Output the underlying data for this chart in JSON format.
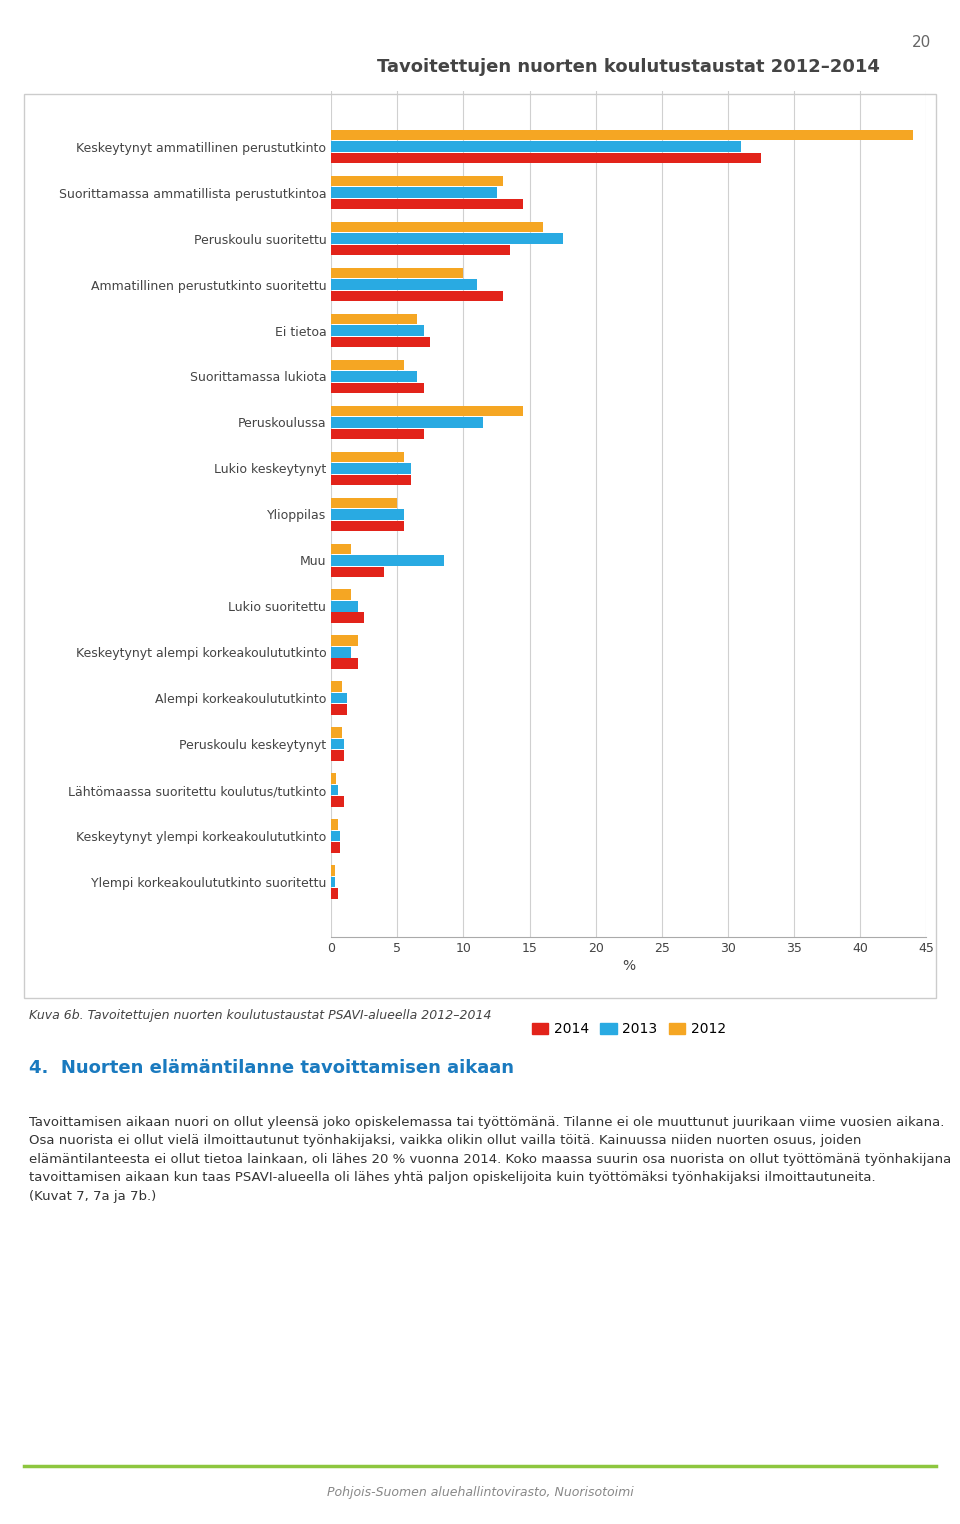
{
  "title": "Tavoitettujen nuorten koulutustaustat 2012–2014",
  "categories": [
    "Keskeytynyt ammatillinen perustutkinto",
    "Suorittamassa ammatillista perustutkintoa",
    "Peruskoulu suoritettu",
    "Ammatillinen perustutkinto suoritettu",
    "Ei tietoa",
    "Suorittamassa lukiota",
    "Peruskoulussa",
    "Lukio keskeytynyt",
    "Ylioppilas",
    "Muu",
    "Lukio suoritettu",
    "Keskeytynyt alempi korkeakoulututkinto",
    "Alempi korkeakoulututkinto",
    "Peruskoulu keskeytynyt",
    "Lähtömaassa suoritettu koulutus/tutkinto",
    "Keskeytynyt ylempi korkeakoulututkinto",
    "Ylempi korkeakoulututkinto suoritettu"
  ],
  "values_2014": [
    32.5,
    14.5,
    13.5,
    13.0,
    7.5,
    7.0,
    7.0,
    6.0,
    5.5,
    4.0,
    2.5,
    2.0,
    1.2,
    1.0,
    1.0,
    0.7,
    0.5
  ],
  "values_2013": [
    31.0,
    12.5,
    17.5,
    11.0,
    7.0,
    6.5,
    11.5,
    6.0,
    5.5,
    8.5,
    2.0,
    1.5,
    1.2,
    1.0,
    0.5,
    0.7,
    0.3
  ],
  "values_2012": [
    44.0,
    13.0,
    16.0,
    10.0,
    6.5,
    5.5,
    14.5,
    5.5,
    5.0,
    1.5,
    1.5,
    2.0,
    0.8,
    0.8,
    0.4,
    0.5,
    0.3
  ],
  "color_2014": "#e2231a",
  "color_2013": "#29aae2",
  "color_2012": "#f5a623",
  "xlabel": "%",
  "xlim": [
    0,
    45
  ],
  "xticks": [
    0,
    5,
    10,
    15,
    20,
    25,
    30,
    35,
    40,
    45
  ],
  "legend_labels": [
    "2014",
    "2013",
    "2012"
  ],
  "caption": "Kuva 6b. Tavoitettujen nuorten koulutustaustat PSAVI-alueella 2012–2014",
  "section_header": "4.  Nuorten elämäntilanne tavoittamisen aikaan",
  "body_text": "Tavoittamisen aikaan nuori on ollut yleensä joko opiskelemassa tai työttömänä. Tilanne ei ole muuttunut juurikaan viime vuosien aikana. Osa nuorista ei ollut vielä ilmoittautunut työnhakijaksi, vaikka olikin ollut vailla töitä. Kainuussa niiden nuorten osuus, joiden elämäntilanteesta ei ollut tietoa lainkaan, oli lähes 20 % vuonna 2014. Koko maassa suurin osa nuorista on ollut työttömänä työnhakijana tavoittamisen aikaan kun taas PSAVI-alueella oli lähes yhtä paljon opiskelijoita kuin työttömäksi työnhakijaksi ilmoittautuneita.\n(Kuvat 7, 7a ja 7b.)",
  "footer": "Pohjois-Suomen aluehallintovirasto, Nuorisotoimi",
  "page_number": "20",
  "background_color": "#ffffff",
  "bar_height": 0.25,
  "title_fontsize": 13,
  "label_fontsize": 9,
  "tick_fontsize": 9
}
